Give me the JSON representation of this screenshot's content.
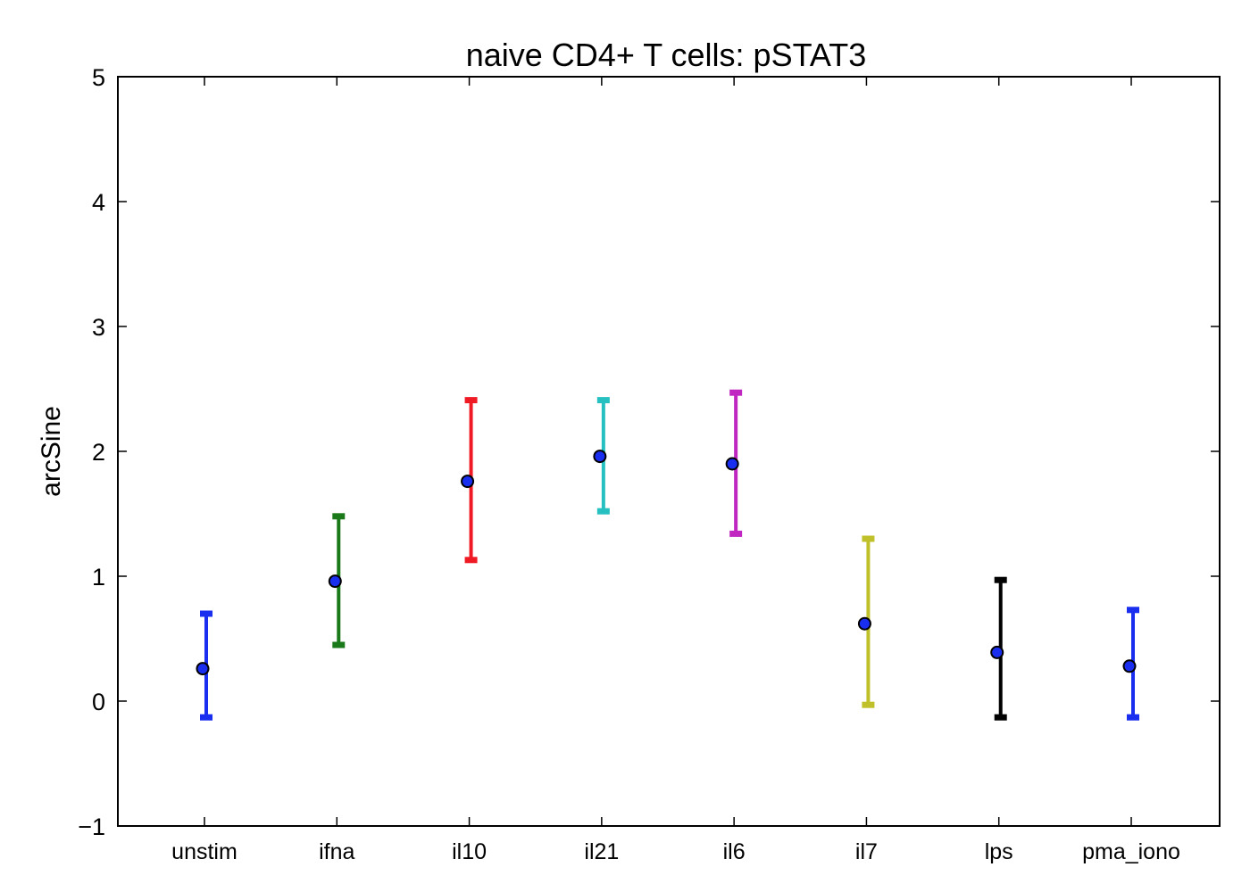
{
  "chart_data": {
    "type": "scatter",
    "title": "naive CD4+ T cells: pSTAT3",
    "xlabel": "",
    "ylabel": "arcSine",
    "ylim": [
      -1,
      5
    ],
    "yticks": [
      "−1",
      "0",
      "1",
      "2",
      "3",
      "4",
      "5"
    ],
    "categories": [
      "unstim",
      "ifna",
      "il10",
      "il21",
      "il6",
      "il7",
      "lps",
      "pma_iono"
    ],
    "points": [
      {
        "category": "unstim",
        "mean": 0.26,
        "lower": -0.13,
        "upper": 0.7,
        "color": "#1a2ef0"
      },
      {
        "category": "ifna",
        "mean": 0.96,
        "lower": 0.45,
        "upper": 1.48,
        "color": "#1a7a1a"
      },
      {
        "category": "il10",
        "mean": 1.76,
        "lower": 1.13,
        "upper": 2.41,
        "color": "#f01a24"
      },
      {
        "category": "il21",
        "mean": 1.96,
        "lower": 1.52,
        "upper": 2.41,
        "color": "#26c0c0"
      },
      {
        "category": "il6",
        "mean": 1.9,
        "lower": 1.34,
        "upper": 2.47,
        "color": "#c026c0"
      },
      {
        "category": "il7",
        "mean": 0.62,
        "lower": -0.03,
        "upper": 1.3,
        "color": "#c0c02a"
      },
      {
        "category": "lps",
        "mean": 0.39,
        "lower": -0.13,
        "upper": 0.97,
        "color": "#000000"
      },
      {
        "category": "pma_iono",
        "mean": 0.28,
        "lower": -0.13,
        "upper": 0.73,
        "color": "#1a2ef0"
      }
    ],
    "marker_color": "#1a2ef0",
    "grid": false,
    "legend": "none"
  }
}
